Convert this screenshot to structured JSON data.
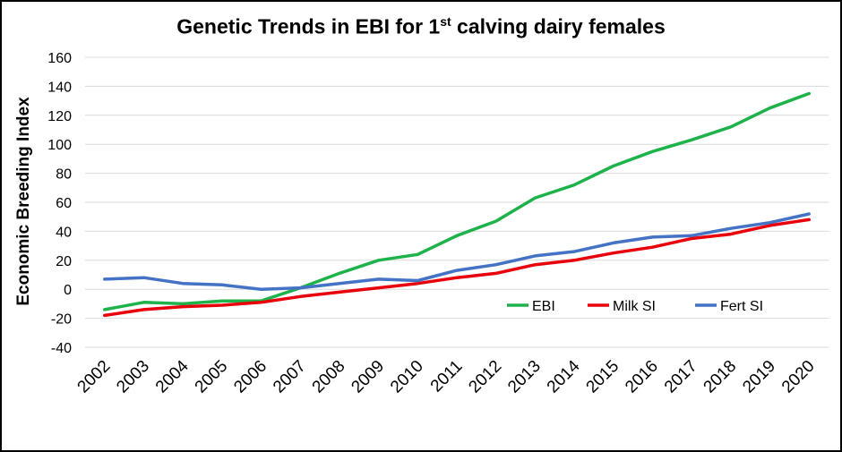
{
  "chart_data": {
    "type": "line",
    "title_main": "Genetic Trends in EBI for 1",
    "title_sup": "st",
    "title_end": " calving dairy females",
    "xlabel": "",
    "ylabel": "Economic Breeding Index",
    "ylim": [
      -40,
      160
    ],
    "yticks": [
      -40,
      -20,
      0,
      20,
      40,
      60,
      80,
      100,
      120,
      140,
      160
    ],
    "grid": true,
    "legend_position": "bottom-right",
    "categories": [
      "2002",
      "2003",
      "2004",
      "2005",
      "2006",
      "2007",
      "2008",
      "2009",
      "2010",
      "2011",
      "2012",
      "2013",
      "2014",
      "2015",
      "2016",
      "2017",
      "2018",
      "2019",
      "2020"
    ],
    "series": [
      {
        "name": "EBI",
        "color": "#1db34a",
        "values": [
          -14,
          -9,
          -10,
          -8,
          -8,
          1,
          11,
          20,
          24,
          37,
          47,
          63,
          72,
          85,
          95,
          103,
          112,
          125,
          135
        ]
      },
      {
        "name": "Milk SI",
        "color": "#e8000b",
        "values": [
          -18,
          -14,
          -12,
          -11,
          -9,
          -5,
          -2,
          1,
          4,
          8,
          11,
          17,
          20,
          25,
          29,
          35,
          38,
          44,
          48
        ]
      },
      {
        "name": "Fert SI",
        "color": "#4472c4",
        "values": [
          7,
          8,
          4,
          3,
          0,
          1,
          4,
          7,
          6,
          13,
          17,
          23,
          26,
          32,
          36,
          37,
          42,
          46,
          52
        ]
      }
    ]
  }
}
